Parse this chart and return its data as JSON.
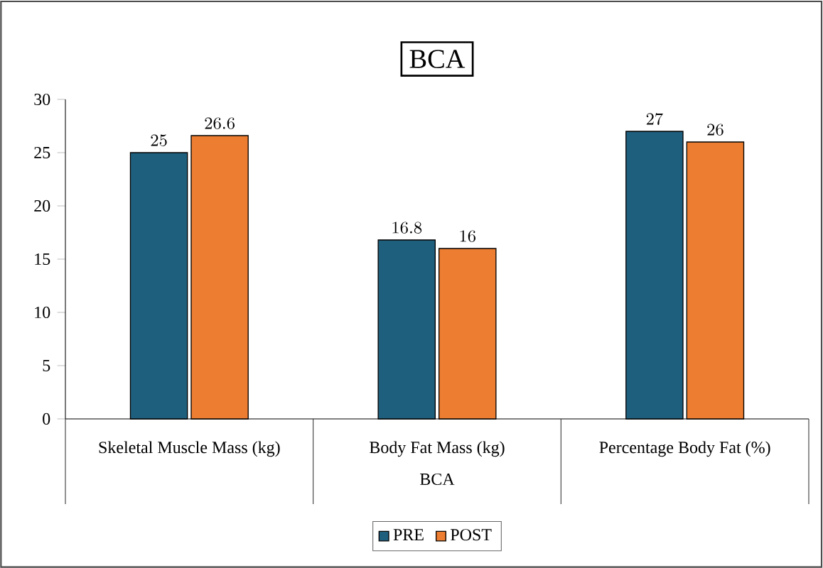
{
  "chart_data": {
    "type": "bar",
    "title": "BCA",
    "xlabel": "BCA",
    "categories": [
      "Skeletal Muscle Mass (kg)",
      "Body Fat Mass (kg)",
      "Percentage Body Fat (%)"
    ],
    "series": [
      {
        "name": "PRE",
        "color": "#1f5f7e",
        "values": [
          25,
          16.8,
          27
        ]
      },
      {
        "name": "POST",
        "color": "#ed7d31",
        "values": [
          26.6,
          16,
          26
        ]
      }
    ],
    "ylim": [
      0,
      30
    ],
    "yticks": [
      0,
      5,
      10,
      15,
      20,
      25,
      30
    ],
    "grid": false,
    "legend": "bottom",
    "data_labels": true
  }
}
